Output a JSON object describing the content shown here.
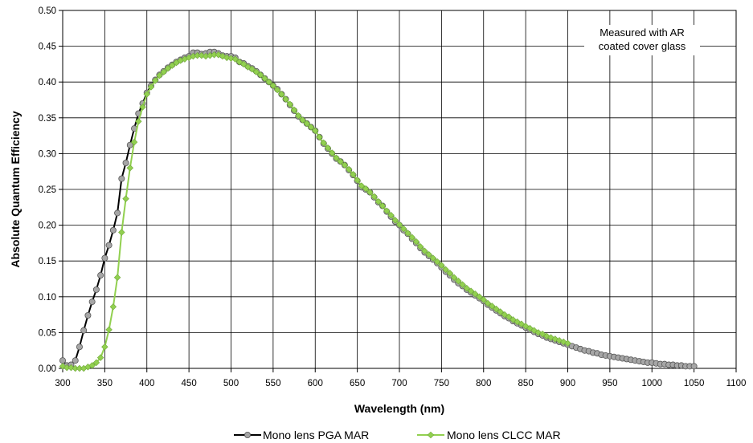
{
  "chart_data": {
    "type": "line",
    "title": "",
    "xlabel": "Wavelength (nm)",
    "ylabel": "Absolute Quantum Efficiency",
    "xlim": [
      300,
      1100
    ],
    "ylim": [
      0,
      0.5
    ],
    "grid": true,
    "legend_position": "bottom",
    "x_ticks": [
      "300",
      "350",
      "400",
      "450",
      "500",
      "550",
      "600",
      "650",
      "700",
      "750",
      "800",
      "850",
      "900",
      "950",
      "1000",
      "1050",
      "1100"
    ],
    "y_ticks": [
      "0.00",
      "0.05",
      "0.10",
      "0.15",
      "0.20",
      "0.25",
      "0.30",
      "0.35",
      "0.40",
      "0.45",
      "0.50"
    ],
    "annotation": [
      "Measured with AR",
      "coated cover glass"
    ],
    "series": [
      {
        "name": "Mono lens PGA MAR",
        "color": "#000000",
        "marker_color": "#a6a6a6",
        "marker": "circle",
        "x": [
          300,
          305,
          310,
          315,
          320,
          325,
          330,
          335,
          340,
          345,
          350,
          355,
          360,
          365,
          370,
          375,
          380,
          385,
          390,
          395,
          400,
          405,
          410,
          415,
          420,
          425,
          430,
          435,
          440,
          445,
          450,
          455,
          460,
          465,
          470,
          475,
          480,
          485,
          490,
          495,
          500,
          505,
          510,
          515,
          520,
          525,
          530,
          535,
          540,
          545,
          550,
          555,
          560,
          565,
          570,
          575,
          580,
          585,
          590,
          595,
          600,
          605,
          610,
          615,
          620,
          625,
          630,
          635,
          640,
          645,
          650,
          655,
          660,
          665,
          670,
          675,
          680,
          685,
          690,
          695,
          700,
          705,
          710,
          715,
          720,
          725,
          730,
          735,
          740,
          745,
          750,
          755,
          760,
          765,
          770,
          775,
          780,
          785,
          790,
          795,
          800,
          805,
          810,
          815,
          820,
          825,
          830,
          835,
          840,
          845,
          850,
          855,
          860,
          865,
          870,
          875,
          880,
          885,
          890,
          895,
          900,
          905,
          910,
          915,
          920,
          925,
          930,
          935,
          940,
          945,
          950,
          955,
          960,
          965,
          970,
          975,
          980,
          985,
          990,
          995,
          1000,
          1005,
          1010,
          1015,
          1020,
          1025,
          1030,
          1035,
          1040,
          1045,
          1050
        ],
        "y": [
          0.011,
          0.004,
          0.005,
          0.011,
          0.03,
          0.053,
          0.074,
          0.093,
          0.11,
          0.13,
          0.154,
          0.172,
          0.193,
          0.217,
          0.265,
          0.287,
          0.312,
          0.335,
          0.356,
          0.37,
          0.385,
          0.395,
          0.403,
          0.41,
          0.415,
          0.42,
          0.424,
          0.428,
          0.431,
          0.434,
          0.436,
          0.441,
          0.441,
          0.439,
          0.44,
          0.442,
          0.442,
          0.44,
          0.437,
          0.436,
          0.436,
          0.434,
          0.428,
          0.426,
          0.422,
          0.419,
          0.415,
          0.41,
          0.405,
          0.4,
          0.395,
          0.39,
          0.383,
          0.376,
          0.368,
          0.36,
          0.352,
          0.347,
          0.342,
          0.337,
          0.332,
          0.323,
          0.314,
          0.307,
          0.3,
          0.293,
          0.289,
          0.284,
          0.277,
          0.27,
          0.262,
          0.253,
          0.25,
          0.246,
          0.239,
          0.232,
          0.227,
          0.219,
          0.212,
          0.205,
          0.2,
          0.193,
          0.188,
          0.181,
          0.175,
          0.168,
          0.162,
          0.157,
          0.152,
          0.147,
          0.141,
          0.135,
          0.13,
          0.124,
          0.119,
          0.115,
          0.11,
          0.106,
          0.102,
          0.098,
          0.094,
          0.089,
          0.085,
          0.081,
          0.077,
          0.073,
          0.07,
          0.066,
          0.063,
          0.06,
          0.057,
          0.054,
          0.051,
          0.048,
          0.046,
          0.043,
          0.041,
          0.039,
          0.037,
          0.035,
          0.033,
          0.031,
          0.029,
          0.027,
          0.025,
          0.024,
          0.022,
          0.021,
          0.019,
          0.018,
          0.017,
          0.016,
          0.015,
          0.014,
          0.013,
          0.012,
          0.011,
          0.01,
          0.009,
          0.008,
          0.008,
          0.007,
          0.006,
          0.006,
          0.005,
          0.005,
          0.004,
          0.004,
          0.003,
          0.003,
          0.003
        ]
      },
      {
        "name": "Mono lens CLCC MAR",
        "color": "#92d050",
        "marker_color": "#92d050",
        "marker": "diamond",
        "x": [
          300,
          305,
          310,
          315,
          320,
          325,
          330,
          335,
          340,
          345,
          350,
          355,
          360,
          365,
          370,
          375,
          380,
          385,
          390,
          395,
          400,
          405,
          410,
          415,
          420,
          425,
          430,
          435,
          440,
          445,
          450,
          455,
          460,
          465,
          470,
          475,
          480,
          485,
          490,
          495,
          500,
          505,
          510,
          515,
          520,
          525,
          530,
          535,
          540,
          545,
          550,
          555,
          560,
          565,
          570,
          575,
          580,
          585,
          590,
          595,
          600,
          605,
          610,
          615,
          620,
          625,
          630,
          635,
          640,
          645,
          650,
          655,
          660,
          665,
          670,
          675,
          680,
          685,
          690,
          695,
          700,
          705,
          710,
          715,
          720,
          725,
          730,
          735,
          740,
          745,
          750,
          755,
          760,
          765,
          770,
          775,
          780,
          785,
          790,
          795,
          800,
          805,
          810,
          815,
          820,
          825,
          830,
          835,
          840,
          845,
          850,
          855,
          860,
          865,
          870,
          875,
          880,
          885,
          890,
          895,
          900
        ],
        "y": [
          0.003,
          0.001,
          0.001,
          0.0,
          0.0,
          0.0,
          0.002,
          0.004,
          0.008,
          0.015,
          0.03,
          0.054,
          0.086,
          0.127,
          0.19,
          0.237,
          0.28,
          0.316,
          0.345,
          0.365,
          0.383,
          0.393,
          0.402,
          0.409,
          0.414,
          0.419,
          0.423,
          0.427,
          0.43,
          0.432,
          0.434,
          0.436,
          0.437,
          0.437,
          0.436,
          0.437,
          0.438,
          0.438,
          0.436,
          0.434,
          0.433,
          0.432,
          0.428,
          0.425,
          0.421,
          0.418,
          0.414,
          0.41,
          0.405,
          0.4,
          0.395,
          0.389,
          0.383,
          0.376,
          0.369,
          0.361,
          0.353,
          0.347,
          0.342,
          0.337,
          0.332,
          0.323,
          0.315,
          0.308,
          0.301,
          0.294,
          0.289,
          0.284,
          0.278,
          0.271,
          0.263,
          0.255,
          0.251,
          0.246,
          0.24,
          0.233,
          0.227,
          0.22,
          0.214,
          0.207,
          0.201,
          0.195,
          0.189,
          0.183,
          0.177,
          0.17,
          0.164,
          0.159,
          0.154,
          0.149,
          0.144,
          0.138,
          0.133,
          0.127,
          0.122,
          0.117,
          0.112,
          0.108,
          0.104,
          0.1,
          0.096,
          0.091,
          0.087,
          0.083,
          0.079,
          0.075,
          0.072,
          0.068,
          0.065,
          0.062,
          0.059,
          0.056,
          0.053,
          0.05,
          0.048,
          0.045,
          0.043,
          0.041,
          0.039,
          0.037,
          0.035
        ]
      }
    ]
  }
}
